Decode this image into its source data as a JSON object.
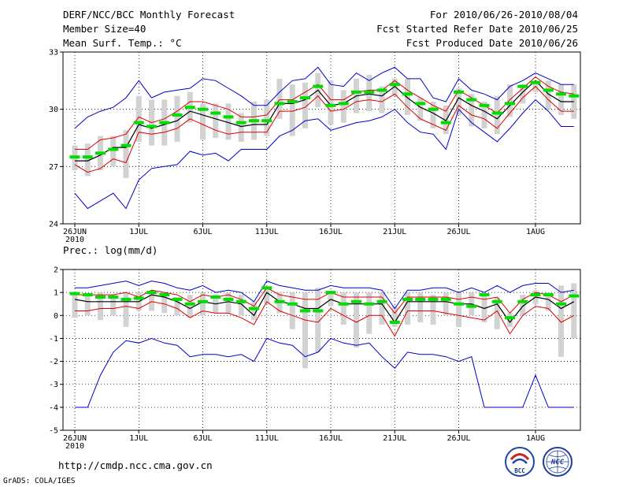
{
  "header": {
    "title": "DERF/NCC/BCC Monthly Forecast",
    "member_size": "Member Size=40",
    "variable": "Mean Surf. Temp.: °C",
    "period": "For 2010/06/26-2010/08/04",
    "started": "Fcst Started Refer Date 2010/06/25",
    "produced": "Fcst Produced Date 2010/06/26"
  },
  "footer": {
    "url": "http://cmdp.ncc.cma.gov.cn",
    "grads": "GrADS: COLA/IGES",
    "logo_left_text": "BCC",
    "logo_right_text": "NCC"
  },
  "colors": {
    "box": "#d2d2d2",
    "median": "#00dd00",
    "mean": "#000000",
    "spread": "#dd0000",
    "extreme": "#0000cc",
    "grid": "#000000"
  },
  "chart_data": [
    {
      "type": "line",
      "title": "",
      "ylabel": "Mean Surf. Temp.: °C",
      "ylim": [
        24,
        33
      ],
      "yticks": [
        "33",
        "30",
        "27",
        "24"
      ],
      "xlim": [
        0,
        39
      ],
      "xticks": [
        {
          "x": 0,
          "label": "26JUN",
          "sub": "2010"
        },
        {
          "x": 5,
          "label": "1JUL"
        },
        {
          "x": 10,
          "label": "6JUL"
        },
        {
          "x": 15,
          "label": "11JUL"
        },
        {
          "x": 20,
          "label": "16JUL"
        },
        {
          "x": 25,
          "label": "21JUL"
        },
        {
          "x": 30,
          "label": "26JUL"
        },
        {
          "x": 36,
          "label": "1AUG"
        }
      ],
      "grid": true,
      "series": [
        {
          "name": "max",
          "values": [
            29.0,
            29.6,
            29.9,
            30.1,
            30.6,
            31.5,
            30.6,
            30.9,
            31.0,
            31.1,
            31.6,
            31.5,
            31.1,
            30.7,
            30.2,
            30.2,
            30.9,
            31.5,
            31.6,
            32.2,
            31.3,
            31.2,
            31.9,
            31.5,
            31.9,
            32.2,
            31.6,
            31.6,
            30.6,
            30.4,
            31.6,
            31.0,
            30.8,
            30.5,
            31.2,
            31.5,
            31.9,
            31.6,
            31.3,
            31.3
          ]
        },
        {
          "name": "upper",
          "values": [
            27.9,
            27.9,
            28.4,
            28.5,
            28.7,
            29.6,
            29.3,
            29.5,
            29.9,
            30.4,
            30.4,
            30.2,
            30.0,
            29.6,
            29.6,
            29.7,
            30.5,
            30.5,
            30.9,
            31.3,
            30.5,
            30.5,
            30.9,
            31.0,
            31.0,
            31.5,
            31.0,
            30.6,
            30.2,
            29.9,
            31.0,
            30.6,
            30.2,
            29.8,
            30.5,
            31.1,
            31.7,
            31.2,
            30.9,
            30.8
          ]
        },
        {
          "name": "mean",
          "values": [
            27.3,
            27.3,
            27.6,
            28.0,
            28.0,
            29.2,
            29.0,
            29.2,
            29.4,
            29.9,
            29.7,
            29.5,
            29.3,
            29.1,
            29.2,
            29.2,
            30.3,
            30.3,
            30.5,
            31.0,
            30.2,
            30.3,
            30.7,
            30.8,
            30.7,
            31.2,
            30.6,
            30.1,
            29.8,
            29.4,
            30.6,
            30.2,
            29.9,
            29.5,
            30.2,
            30.9,
            31.5,
            30.8,
            30.4,
            30.4
          ]
        },
        {
          "name": "lower",
          "values": [
            27.1,
            26.7,
            26.9,
            27.4,
            27.2,
            28.8,
            28.7,
            28.8,
            29.0,
            29.5,
            29.2,
            28.9,
            28.7,
            28.8,
            28.8,
            28.8,
            29.9,
            29.9,
            30.1,
            30.7,
            29.9,
            30.0,
            30.4,
            30.5,
            30.4,
            30.8,
            30.1,
            29.5,
            29.2,
            28.9,
            30.2,
            29.7,
            29.5,
            29.0,
            29.8,
            30.6,
            31.2,
            30.5,
            29.9,
            29.9
          ]
        },
        {
          "name": "min",
          "values": [
            25.6,
            24.8,
            25.2,
            25.6,
            24.8,
            26.3,
            26.9,
            27.0,
            27.1,
            27.8,
            27.6,
            27.7,
            27.3,
            27.9,
            27.9,
            27.9,
            28.6,
            28.9,
            29.4,
            29.5,
            28.9,
            29.1,
            29.3,
            29.4,
            29.6,
            30.0,
            29.3,
            28.8,
            28.7,
            27.9,
            30.0,
            29.3,
            28.8,
            28.3,
            29.0,
            29.8,
            30.5,
            29.9,
            29.1,
            29.1
          ]
        },
        {
          "name": "median",
          "values": [
            27.5,
            27.5,
            27.7,
            27.9,
            28.1,
            29.3,
            29.1,
            29.3,
            29.7,
            30.1,
            30.0,
            29.8,
            29.6,
            29.3,
            29.4,
            29.4,
            30.3,
            30.4,
            30.6,
            31.2,
            30.2,
            30.3,
            30.9,
            30.9,
            31.0,
            31.3,
            30.8,
            30.3,
            30.0,
            29.3,
            30.9,
            30.5,
            30.2,
            29.8,
            30.3,
            31.2,
            31.4,
            31.0,
            30.8,
            30.7
          ]
        },
        {
          "name": "box_top",
          "values": [
            28.1,
            28.2,
            28.6,
            28.6,
            28.9,
            30.7,
            30.5,
            30.5,
            30.7,
            30.9,
            30.3,
            30.3,
            30.3,
            29.8,
            30.4,
            30.5,
            31.6,
            31.3,
            31.4,
            31.9,
            31.5,
            31.0,
            31.6,
            31.8,
            31.2,
            31.6,
            31.6,
            30.6,
            30.4,
            30.2,
            31.1,
            30.8,
            30.4,
            30.7,
            31.3,
            31.3,
            31.5,
            31.5,
            31.3,
            31.3
          ]
        },
        {
          "name": "box_bottom",
          "values": [
            26.8,
            26.5,
            26.8,
            27.0,
            26.4,
            28.3,
            28.1,
            28.1,
            28.3,
            29.3,
            28.4,
            28.5,
            28.4,
            28.3,
            28.4,
            28.6,
            29.5,
            28.6,
            29.0,
            30.1,
            29.2,
            29.3,
            29.8,
            29.9,
            29.8,
            30.7,
            29.7,
            29.4,
            29.0,
            28.7,
            29.7,
            29.1,
            29.0,
            28.7,
            29.6,
            30.3,
            30.9,
            30.0,
            29.7,
            29.5
          ]
        }
      ]
    },
    {
      "type": "line",
      "title": "Prec.: log(mm/d)",
      "ylabel": "Prec.: log(mm/d)",
      "ylim": [
        -5,
        2
      ],
      "yticks": [
        "2",
        "1",
        "0",
        "-1",
        "-2",
        "-3",
        "-4",
        "-5"
      ],
      "xlim": [
        0,
        39
      ],
      "xticks": [
        {
          "x": 0,
          "label": "26JUN",
          "sub": "2010"
        },
        {
          "x": 5,
          "label": "1JUL"
        },
        {
          "x": 10,
          "label": "6JUL"
        },
        {
          "x": 15,
          "label": "11JUL"
        },
        {
          "x": 20,
          "label": "16JUL"
        },
        {
          "x": 25,
          "label": "21JUL"
        },
        {
          "x": 30,
          "label": "26JUL"
        },
        {
          "x": 36,
          "label": "1AUG"
        }
      ],
      "grid": true,
      "series": [
        {
          "name": "max",
          "values": [
            1.2,
            1.2,
            1.3,
            1.4,
            1.5,
            1.3,
            1.5,
            1.4,
            1.2,
            1.1,
            1.3,
            1.0,
            1.1,
            1.0,
            0.6,
            1.5,
            1.3,
            1.2,
            1.1,
            1.1,
            1.3,
            1.2,
            1.2,
            1.2,
            1.1,
            0.3,
            1.1,
            1.1,
            1.2,
            1.2,
            1.0,
            1.2,
            1.0,
            1.3,
            1.0,
            1.3,
            1.4,
            1.4,
            1.0,
            1.1
          ]
        },
        {
          "name": "upper",
          "values": [
            0.9,
            0.9,
            0.9,
            0.9,
            1.0,
            0.8,
            1.1,
            1.0,
            0.9,
            0.6,
            0.9,
            0.8,
            0.9,
            0.7,
            0.4,
            1.2,
            0.9,
            0.8,
            0.7,
            0.7,
            1.0,
            0.8,
            0.8,
            0.8,
            0.8,
            0.1,
            0.8,
            0.8,
            0.8,
            0.8,
            0.7,
            0.8,
            0.7,
            0.8,
            0.1,
            0.7,
            1.0,
            0.9,
            0.6,
            0.9
          ]
        },
        {
          "name": "mean",
          "values": [
            0.7,
            0.6,
            0.6,
            0.6,
            0.6,
            0.6,
            0.9,
            0.8,
            0.6,
            0.3,
            0.6,
            0.5,
            0.6,
            0.5,
            0.0,
            1.0,
            0.6,
            0.5,
            0.3,
            0.3,
            0.7,
            0.5,
            0.5,
            0.5,
            0.5,
            -0.3,
            0.6,
            0.6,
            0.6,
            0.6,
            0.5,
            0.5,
            0.3,
            0.5,
            -0.3,
            0.4,
            0.8,
            0.7,
            0.3,
            0.6
          ]
        },
        {
          "name": "lower",
          "values": [
            0.2,
            0.2,
            0.3,
            0.3,
            0.4,
            0.3,
            0.6,
            0.5,
            0.3,
            -0.1,
            0.2,
            0.1,
            0.1,
            -0.1,
            -0.4,
            0.6,
            0.2,
            0.0,
            -0.2,
            -0.3,
            0.3,
            0.0,
            -0.3,
            0.0,
            0.0,
            -0.9,
            0.2,
            0.2,
            0.2,
            0.1,
            0.0,
            -0.1,
            -0.2,
            0.2,
            -0.8,
            0.0,
            0.4,
            0.3,
            -0.3,
            0.0
          ]
        },
        {
          "name": "min",
          "values": [
            -4.0,
            -4.0,
            -2.6,
            -1.6,
            -1.1,
            -1.2,
            -1.0,
            -1.2,
            -1.3,
            -1.8,
            -1.7,
            -1.7,
            -1.8,
            -1.7,
            -2.0,
            -1.0,
            -1.2,
            -1.3,
            -1.8,
            -1.6,
            -1.0,
            -1.2,
            -1.3,
            -1.2,
            -1.8,
            -2.3,
            -1.6,
            -1.7,
            -1.7,
            -1.8,
            -2.0,
            -1.8,
            -4.0,
            -4.0,
            -4.0,
            -4.0,
            -2.6,
            -4.0,
            -4.0,
            -4.0
          ]
        },
        {
          "name": "median",
          "values": [
            0.95,
            0.9,
            0.8,
            0.8,
            0.7,
            0.75,
            1.0,
            0.9,
            0.7,
            0.5,
            0.6,
            0.8,
            0.7,
            0.6,
            0.3,
            1.2,
            0.6,
            0.5,
            0.2,
            0.2,
            1.0,
            0.5,
            0.6,
            0.5,
            0.6,
            -0.3,
            0.7,
            0.7,
            0.7,
            0.7,
            0.5,
            0.4,
            0.9,
            0.6,
            -0.1,
            0.6,
            0.9,
            0.9,
            0.5,
            0.85
          ]
        },
        {
          "name": "box_top",
          "values": [
            1.0,
            0.9,
            1.0,
            0.9,
            1.0,
            1.0,
            1.0,
            1.0,
            0.8,
            0.9,
            1.0,
            0.9,
            1.0,
            0.9,
            0.6,
            1.2,
            1.0,
            1.0,
            1.0,
            1.2,
            1.0,
            1.0,
            1.0,
            1.0,
            1.0,
            0.4,
            1.0,
            1.0,
            0.9,
            1.0,
            1.0,
            1.0,
            0.9,
            0.8,
            0.1,
            0.9,
            1.1,
            1.0,
            1.3,
            1.4
          ]
        },
        {
          "name": "box_bottom",
          "values": [
            -0.1,
            0.0,
            -0.2,
            0.0,
            -0.5,
            0.2,
            0.2,
            0.1,
            0.0,
            -0.1,
            0.0,
            0.1,
            0.1,
            0.0,
            -0.2,
            0.5,
            0.1,
            -0.6,
            -2.3,
            -1.6,
            0.4,
            -0.4,
            -1.4,
            -0.8,
            -0.4,
            -0.5,
            -0.4,
            -0.3,
            -0.4,
            0.0,
            -0.5,
            0.0,
            -0.3,
            -0.6,
            -0.5,
            0.0,
            0.5,
            0.2,
            -1.8,
            -1.0
          ]
        }
      ]
    }
  ]
}
